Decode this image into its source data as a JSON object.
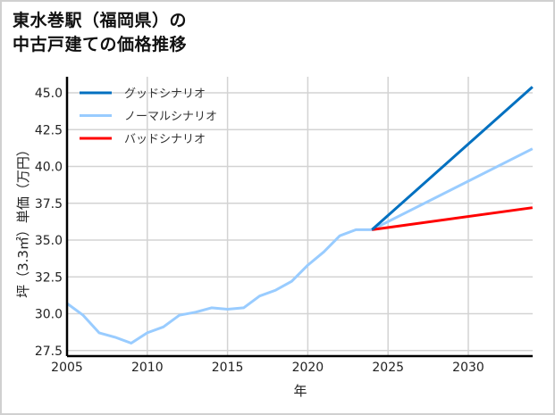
{
  "chart_data": {
    "type": "line",
    "title": "東水巻駅（福岡県）の中古戸建ての価格推移",
    "title_lines": [
      "東水巻駅（福岡県）の",
      "中古戸建ての価格推移"
    ],
    "xlabel": "年",
    "ylabel": "坪（3.3㎡）単価（万円）",
    "xlim": [
      2005,
      2034
    ],
    "ylim": [
      27.2,
      45.5
    ],
    "x_ticks": [
      "2005",
      "2010",
      "2015",
      "2020",
      "2025",
      "2030"
    ],
    "y_ticks": [
      "27.5",
      "30.0",
      "32.5",
      "35.0",
      "37.5",
      "40.0",
      "42.5",
      "45.0"
    ],
    "grid": true,
    "legend_position": "upper left",
    "series": [
      {
        "name": "グッドシナリオ",
        "color": "#0070c0",
        "x": [
          2024,
          2034
        ],
        "values": [
          35.7,
          45.4
        ]
      },
      {
        "name": "ノーマルシナリオ",
        "color": "#99ccff",
        "x": [
          2005,
          2006,
          2007,
          2008,
          2009,
          2010,
          2011,
          2012,
          2013,
          2014,
          2015,
          2016,
          2017,
          2018,
          2019,
          2020,
          2021,
          2022,
          2023,
          2024,
          2034
        ],
        "values": [
          30.7,
          29.9,
          28.7,
          28.4,
          28.0,
          28.7,
          29.1,
          29.9,
          30.1,
          30.4,
          30.3,
          30.4,
          31.2,
          31.6,
          32.2,
          33.3,
          34.2,
          35.3,
          35.7,
          35.7,
          41.2
        ]
      },
      {
        "name": "バッドシナリオ",
        "color": "#ff0000",
        "x": [
          2024,
          2034
        ],
        "values": [
          35.7,
          37.2
        ]
      }
    ]
  }
}
